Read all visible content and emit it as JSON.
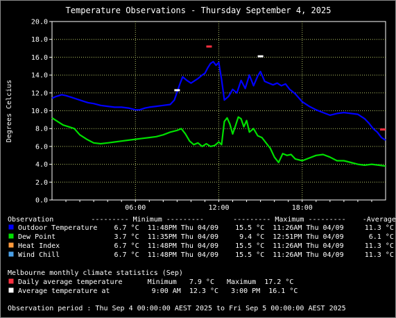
{
  "colors": {
    "background": "#000000",
    "grid": "#b8c86a",
    "outdoor": "#0000ff",
    "dew": "#00e000",
    "heat": "#ff9a3c",
    "wind": "#4aa0e8",
    "daily_avg": "#ff3040",
    "avg_temp": "#ffffff"
  },
  "chart_data": {
    "type": "line",
    "title": "Temperature Observations - Thursday September 4, 2025",
    "ylabel": "Degrees Celcius",
    "xlabel": "",
    "ylim": [
      0,
      20
    ],
    "xlim_hours": [
      0,
      24
    ],
    "y_ticks": [
      "0.0",
      "2.0",
      "4.0",
      "6.0",
      "8.0",
      "10.0",
      "12.0",
      "14.0",
      "16.0",
      "18.0",
      "20.0"
    ],
    "x_ticks": [
      {
        "hour": 6,
        "label": "06:00"
      },
      {
        "hour": 12,
        "label": "12:00"
      },
      {
        "hour": 18,
        "label": "18:00"
      }
    ],
    "grid": true,
    "series": [
      {
        "name": "Outdoor Temperature",
        "color": "#0000ff",
        "x": [
          0,
          0.3,
          0.7,
          1.0,
          1.4,
          1.8,
          2.2,
          2.6,
          3.0,
          3.5,
          4.0,
          4.5,
          5.0,
          5.5,
          6.0,
          6.3,
          6.7,
          7.0,
          7.5,
          8.0,
          8.5,
          8.8,
          9.0,
          9.2,
          9.4,
          9.7,
          10.0,
          10.2,
          10.5,
          10.8,
          11.0,
          11.2,
          11.4,
          11.6,
          11.8,
          12.0,
          12.2,
          12.4,
          12.7,
          13.0,
          13.3,
          13.6,
          13.9,
          14.2,
          14.5,
          14.8,
          15.0,
          15.3,
          15.6,
          15.9,
          16.2,
          16.5,
          16.8,
          17.1,
          17.5,
          18.0,
          18.5,
          19.0,
          19.5,
          20.0,
          20.5,
          21.0,
          21.5,
          22.0,
          22.5,
          22.8,
          23.1,
          23.4,
          23.7,
          24.0
        ],
        "values": [
          11.4,
          11.6,
          11.8,
          11.7,
          11.5,
          11.3,
          11.1,
          10.9,
          10.8,
          10.6,
          10.5,
          10.4,
          10.4,
          10.3,
          10.1,
          10.1,
          10.3,
          10.4,
          10.5,
          10.6,
          10.7,
          11.2,
          12.1,
          13.0,
          13.8,
          13.4,
          13.1,
          13.3,
          13.6,
          14.0,
          14.2,
          14.8,
          15.3,
          15.5,
          15.1,
          15.4,
          13.5,
          11.2,
          11.6,
          12.4,
          12.0,
          13.4,
          12.5,
          14.0,
          12.8,
          13.9,
          14.4,
          13.3,
          13.1,
          12.9,
          13.1,
          12.8,
          13.0,
          12.4,
          11.9,
          11.0,
          10.5,
          10.1,
          9.8,
          9.5,
          9.7,
          9.8,
          9.7,
          9.6,
          9.1,
          8.6,
          8.0,
          7.6,
          7.0,
          6.7
        ]
      },
      {
        "name": "Dew Point",
        "color": "#00e000",
        "x": [
          0,
          0.4,
          0.8,
          1.2,
          1.6,
          2.0,
          2.5,
          3.0,
          3.5,
          4.0,
          4.5,
          5.0,
          5.5,
          6.0,
          6.5,
          7.0,
          7.5,
          8.0,
          8.5,
          9.0,
          9.3,
          9.6,
          9.9,
          10.2,
          10.5,
          10.8,
          11.1,
          11.4,
          11.7,
          12.0,
          12.2,
          12.4,
          12.6,
          12.8,
          13.0,
          13.2,
          13.4,
          13.6,
          13.8,
          14.0,
          14.2,
          14.5,
          14.8,
          15.1,
          15.4,
          15.7,
          16.0,
          16.3,
          16.6,
          16.9,
          17.2,
          17.5,
          18.0,
          18.5,
          19.0,
          19.5,
          20.0,
          20.5,
          21.0,
          21.5,
          22.0,
          22.5,
          23.0,
          23.5,
          24.0
        ],
        "values": [
          9.2,
          8.8,
          8.4,
          8.2,
          8.0,
          7.3,
          6.8,
          6.4,
          6.3,
          6.4,
          6.5,
          6.6,
          6.7,
          6.8,
          6.9,
          7.0,
          7.1,
          7.3,
          7.6,
          7.8,
          8.0,
          7.4,
          6.6,
          6.2,
          6.4,
          6.0,
          6.3,
          6.0,
          6.1,
          6.5,
          6.2,
          8.8,
          9.2,
          8.5,
          7.4,
          8.3,
          9.3,
          9.1,
          8.2,
          8.9,
          7.6,
          8.0,
          7.2,
          7.0,
          6.4,
          5.8,
          4.8,
          4.2,
          5.2,
          5.0,
          5.1,
          4.6,
          4.4,
          4.7,
          5.0,
          5.1,
          4.8,
          4.4,
          4.4,
          4.2,
          4.0,
          3.9,
          4.0,
          3.9,
          3.8
        ]
      }
    ],
    "markers": [
      {
        "label": "Daily average temperature",
        "color": "#ff3040",
        "points": [
          {
            "hour": 11.3,
            "value": 17.2
          },
          {
            "hour": 23.8,
            "value": 7.9
          }
        ]
      },
      {
        "label": "Average temperature at",
        "color": "#ffffff",
        "points": [
          {
            "hour": 15.0,
            "value": 16.1
          },
          {
            "hour": 9.0,
            "value": 12.3
          }
        ]
      }
    ]
  },
  "legend": {
    "header": "Observation         --------- Minimum ---------       --------- Maximum ---------    -Average-",
    "rows": [
      {
        "key": "outdoor",
        "text": "Outdoor Temperature    6.7 °C  11:48PM Thu 04/09    15.5 °C  11:26AM Thu 04/09     11.3 °C"
      },
      {
        "key": "dew",
        "text": "Dew Point              3.7 °C  11:35PM Thu 04/09     9.4 °C  12:51PM Thu 04/09      6.1 °C"
      },
      {
        "key": "heat",
        "text": "Heat Index             6.7 °C  11:48PM Thu 04/09    15.5 °C  11:26AM Thu 04/09     11.3 °C"
      },
      {
        "key": "wind",
        "text": "Wind Chill             6.7 °C  11:48PM Thu 04/09    15.5 °C  11:26AM Thu 04/09     11.3 °C"
      }
    ]
  },
  "climate": {
    "header": "Melbourne monthly climate statistics (Sep)",
    "rows": [
      {
        "key": "daily_avg",
        "text": "Daily average temperature      Minimum   7.9 °C   Maximum  17.2 °C"
      },
      {
        "key": "avg_temp",
        "text": "Average temperature at          9:00 AM  12.3 °C   3:00 PM  16.1 °C"
      }
    ]
  },
  "period": "Observation period : Thu Sep 4 00:00:00 AEST 2025 to Fri Sep 5 00:00:00 AEST 2025"
}
